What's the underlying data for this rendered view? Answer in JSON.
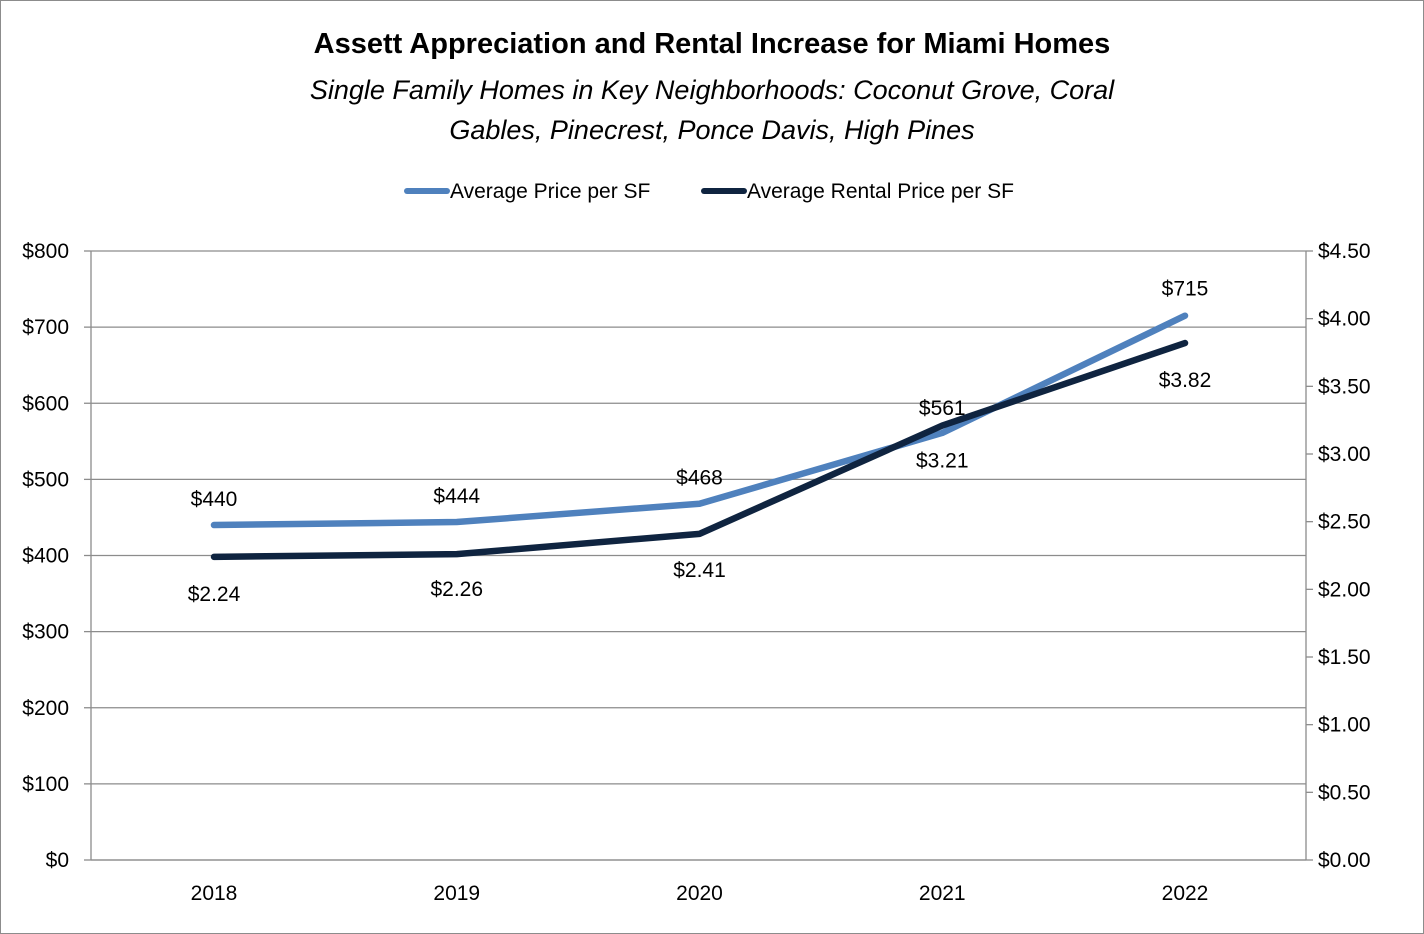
{
  "chart_data": {
    "type": "line",
    "title": "Assett Appreciation and Rental Increase for Miami Homes",
    "subtitle": "Single Family Homes in Key Neighborhoods: Coconut Grove, Coral Gables, Pinecrest, Ponce Davis, High Pines",
    "categories": [
      "2018",
      "2019",
      "2020",
      "2021",
      "2022"
    ],
    "series": [
      {
        "name": "Average Price per SF",
        "axis": "left",
        "color": "#4f81bd",
        "values": [
          440,
          444,
          468,
          561,
          715
        ],
        "labels": [
          "$440",
          "$444",
          "$468",
          "$561",
          "$715"
        ]
      },
      {
        "name": "Average Rental Price per SF",
        "axis": "right",
        "color": "#0f2440",
        "values": [
          2.24,
          2.26,
          2.41,
          3.21,
          3.82
        ],
        "labels": [
          "$2.24",
          "$2.26",
          "$2.41",
          "$3.21",
          "$3.82"
        ]
      }
    ],
    "y_left": {
      "ylim": [
        0,
        800
      ],
      "ticks": [
        "$0",
        "$100",
        "$200",
        "$300",
        "$400",
        "$500",
        "$600",
        "$700",
        "$800"
      ]
    },
    "y_right": {
      "ylim": [
        0,
        4.5
      ],
      "ticks": [
        "$0.00",
        "$0.50",
        "$1.00",
        "$1.50",
        "$2.00",
        "$2.50",
        "$3.00",
        "$3.50",
        "$4.00",
        "$4.50"
      ]
    },
    "grid": true,
    "legend_position": "top"
  },
  "colors": {
    "gridline": "#8c8c8c",
    "axis": "#8c8c8c"
  }
}
